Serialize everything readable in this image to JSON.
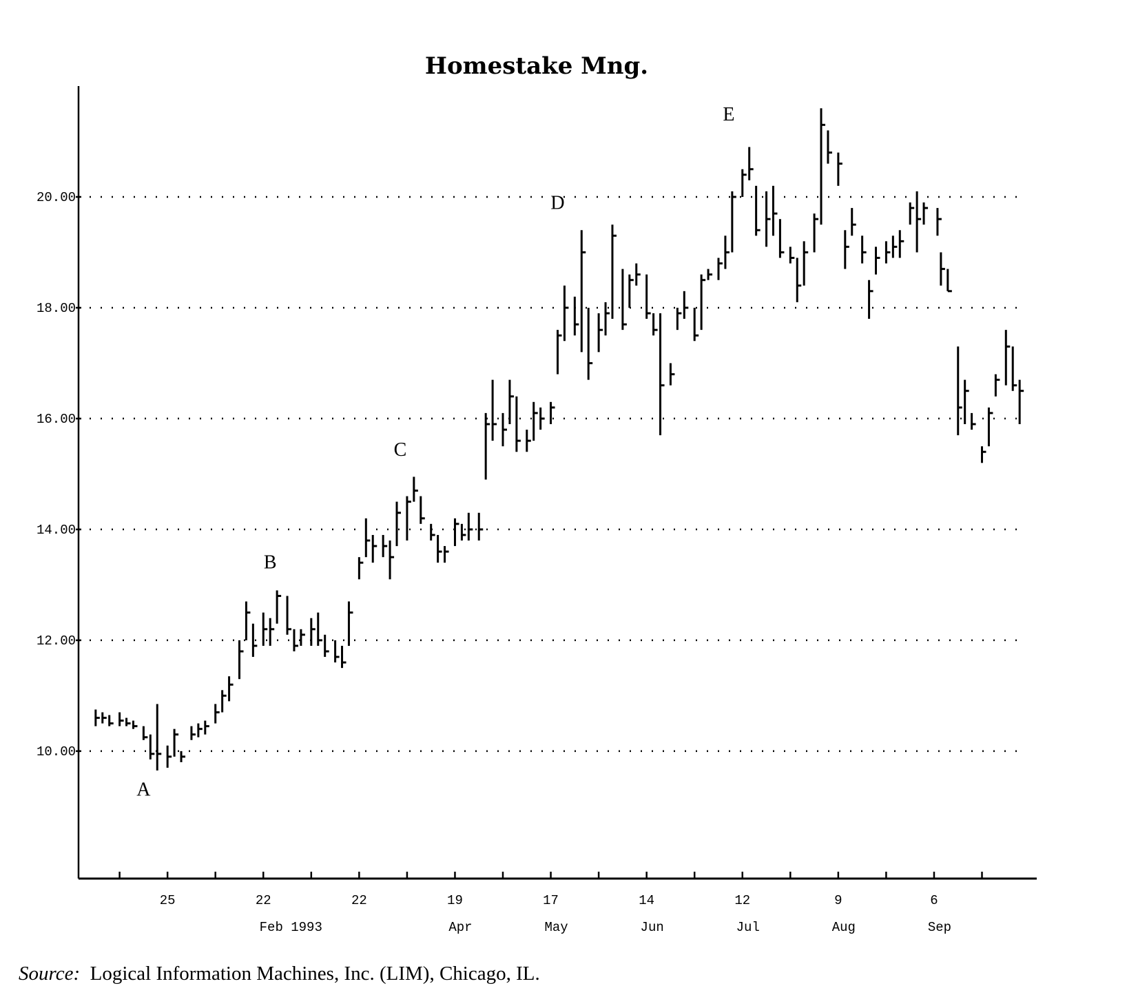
{
  "chart_data": {
    "type": "ohlc-bar",
    "title": "Homestake Mng.",
    "xlabel": "",
    "ylabel": "",
    "ylim": [
      7.7,
      22.0
    ],
    "y_ticks": [
      10,
      12,
      14,
      16,
      18,
      20
    ],
    "y_tick_labels": [
      "10.00",
      "12.00",
      "14.00",
      "16.00",
      "18.00",
      "20.00"
    ],
    "grid": "horizontal dotted",
    "x_range": [
      "1992-12-30",
      "1993-10-06"
    ],
    "x_tick_dates": [
      "1993-01-11",
      "1993-01-25",
      "1993-02-08",
      "1993-02-22",
      "1993-03-08",
      "1993-03-22",
      "1993-04-05",
      "1993-04-19",
      "1993-05-03",
      "1993-05-17",
      "1993-05-31",
      "1993-06-14",
      "1993-06-28",
      "1993-07-12",
      "1993-07-26",
      "1993-08-09",
      "1993-08-23",
      "1993-09-06",
      "1993-09-20"
    ],
    "x_tick_labels": [
      {
        "date": "1993-01-25",
        "day": "25",
        "month": ""
      },
      {
        "date": "1993-02-22",
        "day": "22",
        "month": "Feb 1993"
      },
      {
        "date": "1993-03-22",
        "day": "22",
        "month": ""
      },
      {
        "date": "1993-04-19",
        "day": "19",
        "month": "Apr"
      },
      {
        "date": "1993-05-17",
        "day": "17",
        "month": "May"
      },
      {
        "date": "1993-06-14",
        "day": "14",
        "month": "Jun"
      },
      {
        "date": "1993-07-12",
        "day": "12",
        "month": "Jul"
      },
      {
        "date": "1993-08-09",
        "day": "9",
        "month": "Aug"
      },
      {
        "date": "1993-09-06",
        "day": "6",
        "month": "Sep"
      }
    ],
    "annotations": [
      {
        "label": "A",
        "date": "1993-01-18",
        "price": 9.2
      },
      {
        "label": "B",
        "date": "1993-02-24",
        "price": 13.3
      },
      {
        "label": "C",
        "date": "1993-04-03",
        "price": 15.33
      },
      {
        "label": "D",
        "date": "1993-05-19",
        "price": 19.78
      },
      {
        "label": "E",
        "date": "1993-07-08",
        "price": 21.38
      }
    ],
    "bar_fields": [
      "date",
      "high",
      "low",
      "close"
    ],
    "bars": [
      [
        "1993-01-04",
        10.75,
        10.45,
        10.6
      ],
      [
        "1993-01-06",
        10.7,
        10.5,
        10.6
      ],
      [
        "1993-01-08",
        10.65,
        10.45,
        10.5
      ],
      [
        "1993-01-11",
        10.7,
        10.45,
        10.55
      ],
      [
        "1993-01-13",
        10.6,
        10.45,
        10.5
      ],
      [
        "1993-01-15",
        10.55,
        10.4,
        10.45
      ],
      [
        "1993-01-18",
        10.45,
        10.2,
        10.25
      ],
      [
        "1993-01-20",
        10.3,
        9.85,
        9.95
      ],
      [
        "1993-01-22",
        10.85,
        9.65,
        9.95
      ],
      [
        "1993-01-25",
        10.1,
        9.7,
        9.9
      ],
      [
        "1993-01-27",
        10.4,
        9.9,
        10.3
      ],
      [
        "1993-01-29",
        10.0,
        9.8,
        9.9
      ],
      [
        "1993-02-01",
        10.45,
        10.2,
        10.3
      ],
      [
        "1993-02-03",
        10.5,
        10.25,
        10.4
      ],
      [
        "1993-02-05",
        10.55,
        10.3,
        10.45
      ],
      [
        "1993-02-08",
        10.85,
        10.5,
        10.7
      ],
      [
        "1993-02-10",
        11.1,
        10.7,
        11.0
      ],
      [
        "1993-02-12",
        11.35,
        10.9,
        11.2
      ],
      [
        "1993-02-15",
        12.0,
        11.3,
        11.8
      ],
      [
        "1993-02-17",
        12.7,
        12.0,
        12.5
      ],
      [
        "1993-02-19",
        12.3,
        11.7,
        11.9
      ],
      [
        "1993-02-22",
        12.5,
        11.9,
        12.2
      ],
      [
        "1993-02-24",
        12.4,
        11.9,
        12.2
      ],
      [
        "1993-02-26",
        12.9,
        12.3,
        12.8
      ],
      [
        "1993-03-01",
        12.8,
        12.1,
        12.2
      ],
      [
        "1993-03-03",
        12.2,
        11.8,
        11.9
      ],
      [
        "1993-03-05",
        12.2,
        11.9,
        12.1
      ],
      [
        "1993-03-08",
        12.4,
        11.9,
        12.2
      ],
      [
        "1993-03-10",
        12.5,
        11.9,
        12.0
      ],
      [
        "1993-03-12",
        12.1,
        11.7,
        11.8
      ],
      [
        "1993-03-15",
        12.0,
        11.6,
        11.7
      ],
      [
        "1993-03-17",
        11.9,
        11.5,
        11.6
      ],
      [
        "1993-03-19",
        12.7,
        11.9,
        12.5
      ],
      [
        "1993-03-22",
        13.5,
        13.1,
        13.4
      ],
      [
        "1993-03-24",
        14.2,
        13.5,
        13.8
      ],
      [
        "1993-03-26",
        13.9,
        13.4,
        13.7
      ],
      [
        "1993-03-29",
        13.9,
        13.5,
        13.7
      ],
      [
        "1993-03-31",
        13.8,
        13.1,
        13.5
      ],
      [
        "1993-04-02",
        14.5,
        13.7,
        14.3
      ],
      [
        "1993-04-05",
        14.6,
        13.8,
        14.5
      ],
      [
        "1993-04-07",
        14.95,
        14.5,
        14.7
      ],
      [
        "1993-04-09",
        14.6,
        14.1,
        14.2
      ],
      [
        "1993-04-12",
        14.1,
        13.8,
        13.9
      ],
      [
        "1993-04-14",
        13.9,
        13.4,
        13.6
      ],
      [
        "1993-04-16",
        13.7,
        13.4,
        13.6
      ],
      [
        "1993-04-19",
        14.2,
        13.7,
        14.1
      ],
      [
        "1993-04-21",
        14.1,
        13.8,
        13.9
      ],
      [
        "1993-04-23",
        14.3,
        13.8,
        14.0
      ],
      [
        "1993-04-26",
        14.3,
        13.8,
        14.0
      ],
      [
        "1993-04-28",
        16.1,
        14.9,
        15.9
      ],
      [
        "1993-04-30",
        16.7,
        15.6,
        15.9
      ],
      [
        "1993-05-03",
        16.1,
        15.5,
        15.8
      ],
      [
        "1993-05-05",
        16.7,
        15.9,
        16.4
      ],
      [
        "1993-05-07",
        16.4,
        15.4,
        15.6
      ],
      [
        "1993-05-10",
        15.8,
        15.4,
        15.6
      ],
      [
        "1993-05-12",
        16.3,
        15.6,
        16.1
      ],
      [
        "1993-05-14",
        16.2,
        15.8,
        16.0
      ],
      [
        "1993-05-17",
        16.3,
        15.9,
        16.2
      ],
      [
        "1993-05-19",
        17.6,
        16.8,
        17.5
      ],
      [
        "1993-05-21",
        18.4,
        17.4,
        18.0
      ],
      [
        "1993-05-24",
        18.2,
        17.5,
        17.7
      ],
      [
        "1993-05-26",
        19.4,
        17.2,
        19.0
      ],
      [
        "1993-05-28",
        18.0,
        16.7,
        17.0
      ],
      [
        "1993-05-31",
        17.9,
        17.2,
        17.6
      ],
      [
        "1993-06-02",
        18.1,
        17.5,
        17.9
      ],
      [
        "1993-06-04",
        19.5,
        17.8,
        19.3
      ],
      [
        "1993-06-07",
        18.7,
        17.6,
        17.7
      ],
      [
        "1993-06-09",
        18.6,
        18.0,
        18.5
      ],
      [
        "1993-06-11",
        18.8,
        18.4,
        18.6
      ],
      [
        "1993-06-14",
        18.6,
        17.8,
        17.9
      ],
      [
        "1993-06-16",
        17.9,
        17.5,
        17.6
      ],
      [
        "1993-06-18",
        17.9,
        15.7,
        16.6
      ],
      [
        "1993-06-21",
        17.0,
        16.6,
        16.8
      ],
      [
        "1993-06-23",
        18.0,
        17.6,
        17.9
      ],
      [
        "1993-06-25",
        18.3,
        17.8,
        18.0
      ],
      [
        "1993-06-28",
        18.0,
        17.4,
        17.5
      ],
      [
        "1993-06-30",
        18.6,
        17.6,
        18.5
      ],
      [
        "1993-07-02",
        18.7,
        18.5,
        18.6
      ],
      [
        "1993-07-05",
        18.9,
        18.5,
        18.8
      ],
      [
        "1993-07-07",
        19.3,
        18.7,
        19.0
      ],
      [
        "1993-07-09",
        20.1,
        19.0,
        20.0
      ],
      [
        "1993-07-12",
        20.5,
        20.0,
        20.4
      ],
      [
        "1993-07-14",
        20.9,
        20.3,
        20.5
      ],
      [
        "1993-07-16",
        20.2,
        19.3,
        19.4
      ],
      [
        "1993-07-19",
        20.1,
        19.1,
        19.6
      ],
      [
        "1993-07-21",
        20.2,
        19.3,
        19.7
      ],
      [
        "1993-07-23",
        19.6,
        18.9,
        19.0
      ],
      [
        "1993-07-26",
        19.1,
        18.8,
        18.9
      ],
      [
        "1993-07-28",
        18.9,
        18.1,
        18.4
      ],
      [
        "1993-07-30",
        19.2,
        18.4,
        19.0
      ],
      [
        "1993-08-02",
        19.7,
        19.0,
        19.6
      ],
      [
        "1993-08-04",
        21.6,
        19.5,
        21.3
      ],
      [
        "1993-08-06",
        21.2,
        20.6,
        20.8
      ],
      [
        "1993-08-09",
        20.8,
        20.2,
        20.6
      ],
      [
        "1993-08-11",
        19.4,
        18.7,
        19.1
      ],
      [
        "1993-08-13",
        19.8,
        19.3,
        19.5
      ],
      [
        "1993-08-16",
        19.3,
        18.8,
        19.0
      ],
      [
        "1993-08-18",
        18.5,
        17.8,
        18.3
      ],
      [
        "1993-08-20",
        19.1,
        18.6,
        18.9
      ],
      [
        "1993-08-23",
        19.2,
        18.8,
        19.0
      ],
      [
        "1993-08-25",
        19.3,
        18.9,
        19.1
      ],
      [
        "1993-08-27",
        19.4,
        18.9,
        19.2
      ],
      [
        "1993-08-30",
        19.9,
        19.5,
        19.8
      ],
      [
        "1993-09-01",
        20.1,
        19.0,
        19.6
      ],
      [
        "1993-09-03",
        19.9,
        19.5,
        19.8
      ],
      [
        "1993-09-07",
        19.8,
        19.3,
        19.6
      ],
      [
        "1993-09-08",
        19.0,
        18.4,
        18.7
      ],
      [
        "1993-09-10",
        18.7,
        18.3,
        18.3
      ],
      [
        "1993-09-13",
        17.3,
        15.7,
        16.2
      ],
      [
        "1993-09-15",
        16.7,
        15.9,
        16.5
      ],
      [
        "1993-09-17",
        16.1,
        15.8,
        15.9
      ],
      [
        "1993-09-20",
        15.5,
        15.2,
        15.4
      ],
      [
        "1993-09-22",
        16.2,
        15.5,
        16.1
      ],
      [
        "1993-09-24",
        16.8,
        16.4,
        16.7
      ],
      [
        "1993-09-27",
        17.6,
        16.6,
        17.3
      ],
      [
        "1993-09-29",
        17.3,
        16.5,
        16.6
      ],
      [
        "1993-10-01",
        16.7,
        15.9,
        16.5
      ]
    ]
  },
  "source": {
    "label": "Source:",
    "text": "Logical Information Machines, Inc. (LIM), Chicago, IL."
  }
}
